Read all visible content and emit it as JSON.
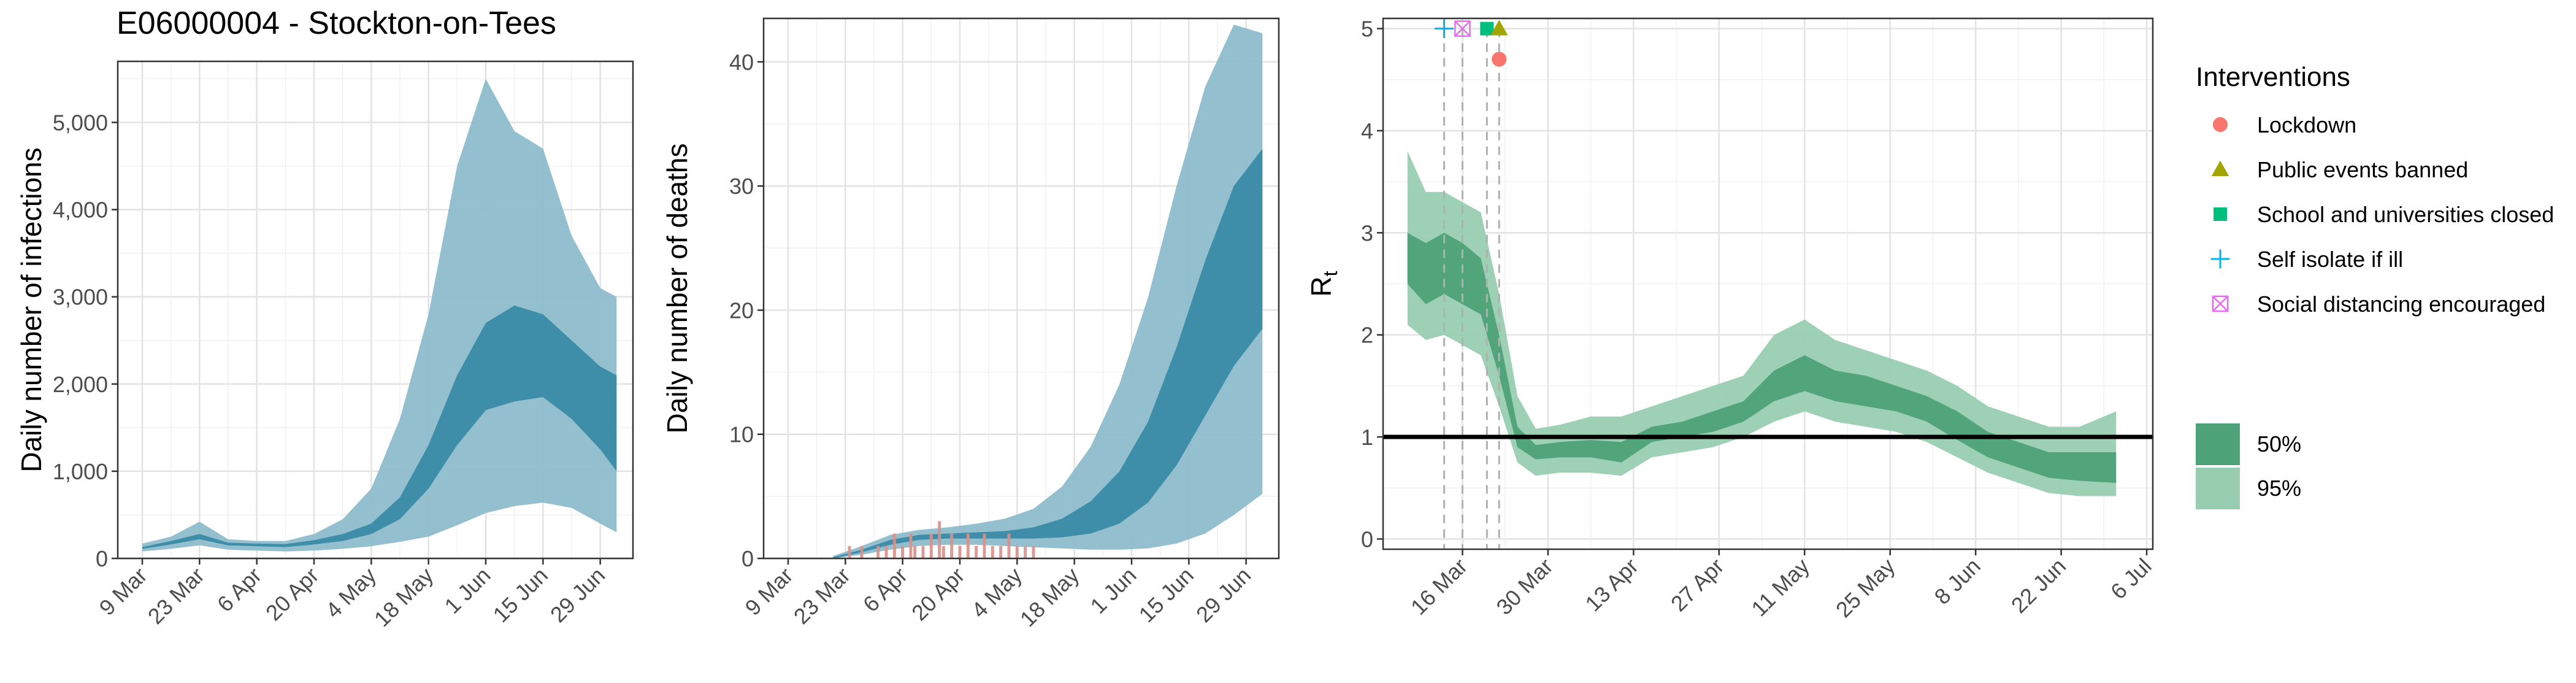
{
  "title": "E06000004 - Stockton-on-Tees",
  "colors": {
    "band_light": "#8dbccb",
    "band_dark": "#3a8ba7",
    "center": "#2b7a95",
    "deaths_obs": "#d9908a",
    "rt_light": "#98cdb0",
    "rt_dark": "#4ea277",
    "lockdown": "#f8766d",
    "public_events": "#a3a500",
    "school": "#00bf7d",
    "self_isolate": "#00b0f6",
    "social_distancing": "#e76bf3"
  },
  "chart_data": [
    {
      "type": "area",
      "name": "infections",
      "ylabel": "Daily number of infections",
      "xlabel": "",
      "ylim": [
        0,
        5700
      ],
      "yticks": [
        0,
        1000,
        2000,
        3000,
        4000,
        5000
      ],
      "yticklabels": [
        "0",
        "1,000",
        "2,000",
        "3,000",
        "4,000",
        "5,000"
      ],
      "xlim": [
        "2020-03-03",
        "2020-07-07"
      ],
      "xticks": [
        "2020-03-09",
        "2020-03-23",
        "2020-04-06",
        "2020-04-20",
        "2020-05-04",
        "2020-05-18",
        "2020-06-01",
        "2020-06-15",
        "2020-06-29"
      ],
      "xticklabels": [
        "9 Mar",
        "23 Mar",
        "6 Apr",
        "20 Apr",
        "4 May",
        "18 May",
        "1 Jun",
        "15 Jun",
        "29 Jun"
      ],
      "grid": true,
      "x": [
        "2020-03-09",
        "2020-03-16",
        "2020-03-23",
        "2020-03-30",
        "2020-04-06",
        "2020-04-13",
        "2020-04-20",
        "2020-04-27",
        "2020-05-04",
        "2020-05-11",
        "2020-05-18",
        "2020-05-25",
        "2020-06-01",
        "2020-06-08",
        "2020-06-15",
        "2020-06-22",
        "2020-06-29",
        "2020-07-03"
      ],
      "low95": [
        80,
        110,
        150,
        100,
        90,
        80,
        90,
        110,
        140,
        190,
        250,
        380,
        520,
        600,
        640,
        580,
        400,
        300
      ],
      "low50": [
        110,
        160,
        220,
        150,
        140,
        130,
        160,
        200,
        280,
        450,
        800,
        1300,
        1700,
        1800,
        1850,
        1600,
        1250,
        1000
      ],
      "high50": [
        130,
        200,
        280,
        180,
        170,
        165,
        210,
        280,
        400,
        700,
        1300,
        2100,
        2700,
        2900,
        2800,
        2500,
        2200,
        2100
      ],
      "high95": [
        170,
        250,
        420,
        220,
        200,
        200,
        280,
        450,
        800,
        1600,
        2800,
        4500,
        5500,
        4900,
        4700,
        3700,
        3100,
        3000
      ]
    },
    {
      "type": "area",
      "name": "deaths",
      "ylabel": "Daily number of deaths",
      "xlabel": "",
      "ylim": [
        0,
        43.5
      ],
      "yticks": [
        0,
        10,
        20,
        30,
        40
      ],
      "yticklabels": [
        "0",
        "10",
        "20",
        "30",
        "40"
      ],
      "xlim": [
        "2020-03-03",
        "2020-07-07"
      ],
      "xticks": [
        "2020-03-09",
        "2020-03-23",
        "2020-04-06",
        "2020-04-20",
        "2020-05-04",
        "2020-05-18",
        "2020-06-01",
        "2020-06-15",
        "2020-06-29"
      ],
      "xticklabels": [
        "9 Mar",
        "23 Mar",
        "6 Apr",
        "20 Apr",
        "4 May",
        "18 May",
        "1 Jun",
        "15 Jun",
        "29 Jun"
      ],
      "grid": true,
      "x": [
        "2020-03-20",
        "2020-03-27",
        "2020-04-03",
        "2020-04-10",
        "2020-04-17",
        "2020-04-24",
        "2020-05-01",
        "2020-05-08",
        "2020-05-15",
        "2020-05-22",
        "2020-05-29",
        "2020-06-05",
        "2020-06-12",
        "2020-06-19",
        "2020-06-26",
        "2020-07-03"
      ],
      "low95": [
        0,
        0.3,
        0.7,
        1.0,
        1.1,
        1.1,
        1.0,
        0.9,
        0.8,
        0.7,
        0.7,
        0.8,
        1.2,
        2.0,
        3.5,
        5.2
      ],
      "low50": [
        0,
        0.5,
        1.1,
        1.5,
        1.6,
        1.6,
        1.6,
        1.6,
        1.7,
        2.0,
        2.8,
        4.5,
        7.5,
        11.5,
        15.5,
        18.5
      ],
      "high50": [
        0.1,
        0.7,
        1.5,
        1.9,
        2.0,
        2.1,
        2.2,
        2.5,
        3.2,
        4.6,
        7.0,
        11.0,
        17.0,
        24.0,
        30.0,
        33.0
      ],
      "high95": [
        0.2,
        1.0,
        1.9,
        2.3,
        2.5,
        2.8,
        3.2,
        4.0,
        5.8,
        9.0,
        14.0,
        21.0,
        30.0,
        38.0,
        43.0,
        42.3
      ],
      "observed_dates": [
        "2020-03-24",
        "2020-03-27",
        "2020-03-31",
        "2020-04-02",
        "2020-04-04",
        "2020-04-06",
        "2020-04-08",
        "2020-04-09",
        "2020-04-11",
        "2020-04-13",
        "2020-04-15",
        "2020-04-16",
        "2020-04-18",
        "2020-04-20",
        "2020-04-22",
        "2020-04-24",
        "2020-04-26",
        "2020-04-28",
        "2020-04-30",
        "2020-05-02",
        "2020-05-04",
        "2020-05-06",
        "2020-05-08"
      ],
      "observed_deaths": [
        1,
        1,
        1,
        1,
        2,
        1,
        2,
        1,
        1,
        2,
        3,
        1,
        2,
        1,
        2,
        1,
        2,
        1,
        1,
        2,
        1,
        1,
        1
      ]
    },
    {
      "type": "area",
      "name": "rt",
      "ylabel": "R",
      "ylabel_sub": "t",
      "xlabel": "",
      "ylim": [
        -0.1,
        5.1
      ],
      "yticks": [
        0,
        1,
        2,
        3,
        4,
        5
      ],
      "yticklabels": [
        "0",
        "1",
        "2",
        "3",
        "4",
        "5"
      ],
      "xlim": [
        "2020-03-03",
        "2020-07-07"
      ],
      "xticks": [
        "2020-03-16",
        "2020-03-30",
        "2020-04-13",
        "2020-04-27",
        "2020-05-11",
        "2020-05-25",
        "2020-06-08",
        "2020-06-22",
        "2020-07-06"
      ],
      "xticklabels": [
        "16 Mar",
        "30 Mar",
        "13 Apr",
        "27 Apr",
        "11 May",
        "25 May",
        "8 Jun",
        "22 Jun",
        "6 Jul"
      ],
      "grid": true,
      "reference_line": 1,
      "x": [
        "2020-03-07",
        "2020-03-10",
        "2020-03-13",
        "2020-03-16",
        "2020-03-19",
        "2020-03-22",
        "2020-03-25",
        "2020-03-28",
        "2020-04-01",
        "2020-04-06",
        "2020-04-11",
        "2020-04-16",
        "2020-04-21",
        "2020-04-26",
        "2020-05-01",
        "2020-05-06",
        "2020-05-11",
        "2020-05-16",
        "2020-05-21",
        "2020-05-26",
        "2020-05-31",
        "2020-06-05",
        "2020-06-10",
        "2020-06-15",
        "2020-06-20",
        "2020-06-25",
        "2020-07-01"
      ],
      "low95": [
        2.1,
        1.95,
        2.0,
        1.9,
        1.8,
        1.3,
        0.75,
        0.62,
        0.65,
        0.65,
        0.62,
        0.8,
        0.85,
        0.9,
        1.0,
        1.15,
        1.25,
        1.15,
        1.1,
        1.05,
        0.95,
        0.8,
        0.65,
        0.55,
        0.45,
        0.42,
        0.42
      ],
      "low50": [
        2.5,
        2.3,
        2.4,
        2.3,
        2.2,
        1.6,
        0.9,
        0.78,
        0.8,
        0.8,
        0.75,
        0.95,
        1.0,
        1.05,
        1.15,
        1.35,
        1.45,
        1.35,
        1.3,
        1.25,
        1.15,
        0.97,
        0.8,
        0.7,
        0.6,
        0.57,
        0.55
      ],
      "high50": [
        3.0,
        2.9,
        3.0,
        2.9,
        2.75,
        2.0,
        1.1,
        0.92,
        0.95,
        0.97,
        0.95,
        1.1,
        1.15,
        1.25,
        1.35,
        1.65,
        1.8,
        1.65,
        1.6,
        1.5,
        1.4,
        1.25,
        1.05,
        0.95,
        0.85,
        0.85,
        0.85
      ],
      "high95": [
        3.8,
        3.4,
        3.4,
        3.3,
        3.2,
        2.4,
        1.4,
        1.08,
        1.12,
        1.2,
        1.2,
        1.3,
        1.4,
        1.5,
        1.6,
        2.0,
        2.15,
        1.95,
        1.85,
        1.75,
        1.65,
        1.5,
        1.3,
        1.2,
        1.1,
        1.1,
        1.25
      ],
      "interventions": [
        {
          "name": "Self isolate if ill",
          "date": "2020-03-13",
          "y": 5.0,
          "shape": "plus",
          "color_key": "self_isolate"
        },
        {
          "name": "Social distancing encouraged",
          "date": "2020-03-16",
          "y": 5.0,
          "shape": "boxx",
          "color_key": "social_distancing"
        },
        {
          "name": "School and universities closed",
          "date": "2020-03-20",
          "y": 5.0,
          "shape": "square",
          "color_key": "school"
        },
        {
          "name": "Public events banned",
          "date": "2020-03-22",
          "y": 5.0,
          "shape": "triangle",
          "color_key": "public_events"
        },
        {
          "name": "Lockdown",
          "date": "2020-03-22",
          "y": 4.7,
          "shape": "circle",
          "color_key": "lockdown"
        }
      ]
    }
  ],
  "legend": {
    "interventions_title": "Interventions",
    "interventions": [
      {
        "label": "Lockdown",
        "shape": "circle",
        "color_key": "lockdown"
      },
      {
        "label": "Public events banned",
        "shape": "triangle",
        "color_key": "public_events"
      },
      {
        "label": "School and universities closed",
        "shape": "square",
        "color_key": "school"
      },
      {
        "label": "Self isolate if ill",
        "shape": "plus",
        "color_key": "self_isolate"
      },
      {
        "label": "Social distancing encouraged",
        "shape": "boxx",
        "color_key": "social_distancing"
      }
    ],
    "bands": [
      {
        "label": "50%",
        "color_key": "rt_dark"
      },
      {
        "label": "95%",
        "color_key": "rt_light"
      }
    ]
  }
}
